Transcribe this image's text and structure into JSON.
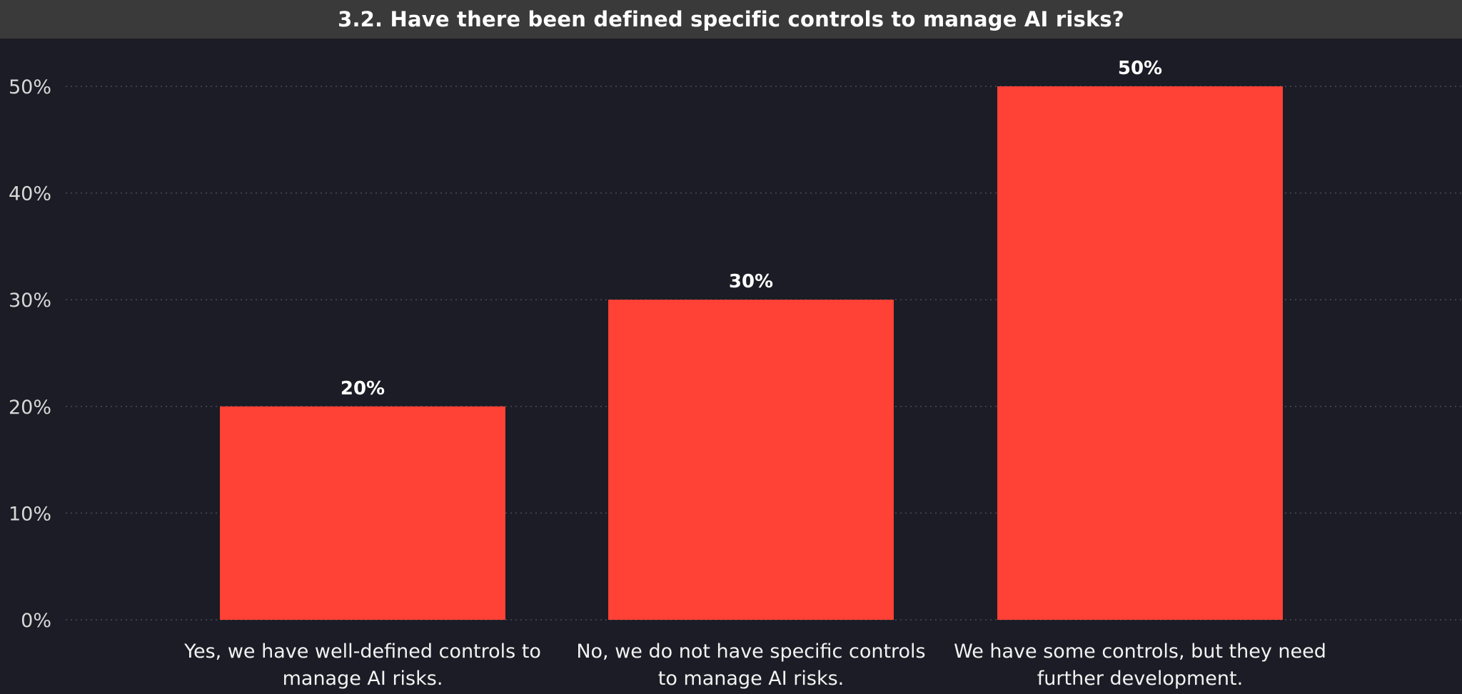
{
  "chart_data": {
    "type": "bar",
    "title": "3.2. Have there been defined specific controls to manage AI risks?",
    "categories": [
      [
        "Yes, we have well-defined controls to",
        "manage AI risks."
      ],
      [
        "No, we do not have specific controls",
        "to manage AI risks."
      ],
      [
        "We have some controls, but they need",
        "further development."
      ]
    ],
    "values": [
      20,
      30,
      50
    ],
    "data_labels": [
      "20%",
      "30%",
      "50%"
    ],
    "y_ticks": [
      0,
      10,
      20,
      30,
      40,
      50
    ],
    "y_tick_labels": [
      "0%",
      "10%",
      "20%",
      "30%",
      "40%",
      "50%"
    ],
    "ylim": [
      0,
      50
    ],
    "xlabel": "",
    "ylabel": "",
    "grid": true,
    "legend": "none",
    "colors": {
      "bar": "#ff4136",
      "background": "#1b1c25",
      "title_bar": "#3a3a3a",
      "gridline": "#4a4b55"
    }
  }
}
